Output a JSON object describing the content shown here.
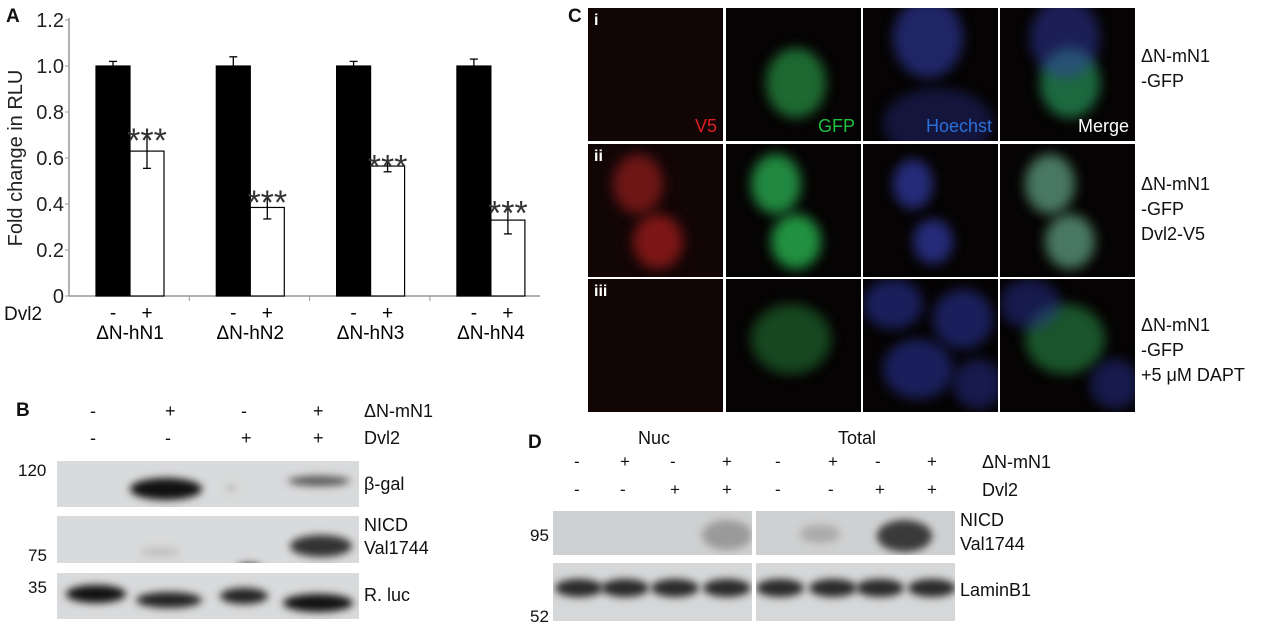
{
  "panels": {
    "A": {
      "label": "A"
    },
    "B": {
      "label": "B",
      "row1_name": "ΔN-mN1",
      "row1": [
        "-",
        "+",
        "-",
        "+"
      ],
      "row2_name": "Dvl2",
      "row2": [
        "-",
        "-",
        "+",
        "+"
      ],
      "markers": [
        "120",
        "75",
        "35"
      ],
      "blot_labels": [
        "β-gal",
        "NICD",
        "Val1744",
        "R. luc"
      ]
    },
    "C": {
      "label": "C",
      "rows": [
        "i",
        "ii",
        "iii"
      ],
      "channels": [
        "V5",
        "GFP",
        "Hoechst",
        "Merge"
      ],
      "channel_colors": [
        "#e02020",
        "#20c040",
        "#2a6fd8",
        "#ffffff"
      ],
      "conditions": [
        [
          "ΔN-mN1",
          "-GFP"
        ],
        [
          "ΔN-mN1",
          "-GFP",
          "Dvl2-V5"
        ],
        [
          "ΔN-mN1",
          "-GFP",
          "+5 μM DAPT"
        ]
      ]
    },
    "D": {
      "label": "D",
      "groups": [
        "Nuc",
        "Total"
      ],
      "row1_name": "ΔN-mN1",
      "row1": [
        "-",
        "+",
        "-",
        "+",
        "-",
        "+",
        "-",
        "+"
      ],
      "row2_name": "Dvl2",
      "row2": [
        "-",
        "-",
        "+",
        "+",
        "-",
        "-",
        "+",
        "+"
      ],
      "markers": [
        "95",
        "52"
      ],
      "blot_labels": [
        "NICD",
        "Val1744",
        "LaminB1"
      ]
    }
  },
  "chart_data": {
    "type": "bar",
    "ylabel": "Fold change in RLU",
    "ylim": [
      0,
      1.2
    ],
    "yticks": [
      "0",
      "0.2",
      "0.4",
      "0.6",
      "0.8",
      "1.0",
      "1.2"
    ],
    "categories": [
      "ΔN-hN1",
      "ΔN-hN2",
      "ΔN-hN3",
      "ΔN-hN4"
    ],
    "condition_label": "Dvl2",
    "conditions": [
      "-",
      "+"
    ],
    "series": [
      {
        "condition": "-",
        "color": "#000000",
        "values": [
          1.0,
          1.0,
          1.0,
          1.0
        ],
        "errors": [
          0.02,
          0.04,
          0.02,
          0.03
        ]
      },
      {
        "condition": "+",
        "color": "#ffffff",
        "values": [
          0.63,
          0.385,
          0.565,
          0.33
        ],
        "errors": [
          0.075,
          0.05,
          0.025,
          0.06
        ]
      }
    ],
    "annotations": [
      "***",
      "***",
      "***",
      "***"
    ],
    "grid": false
  }
}
